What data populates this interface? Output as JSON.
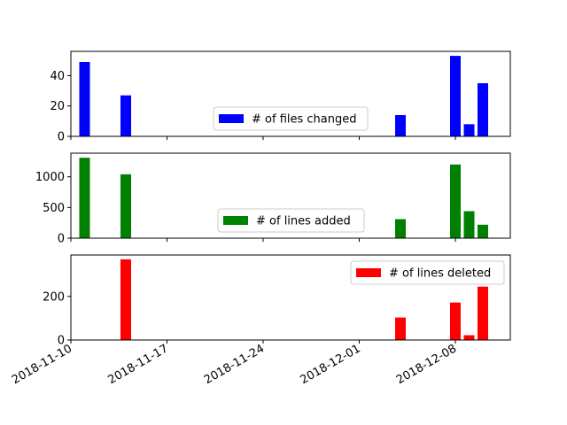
{
  "chart_data": [
    {
      "type": "bar",
      "x": [
        "2018-11-11",
        "2018-11-14",
        "2018-12-04",
        "2018-12-08",
        "2018-12-09",
        "2018-12-10"
      ],
      "values": [
        49,
        27,
        14,
        53,
        8,
        35
      ],
      "series": [
        {
          "name": "# of files changed",
          "color": "#0000ff"
        }
      ],
      "yticks": [
        0,
        20,
        40
      ],
      "ylim": [
        0,
        56
      ],
      "legend": "center"
    },
    {
      "type": "bar",
      "x": [
        "2018-11-11",
        "2018-11-14",
        "2018-12-04",
        "2018-12-08",
        "2018-12-09",
        "2018-12-10"
      ],
      "values": [
        1310,
        1040,
        310,
        1200,
        440,
        220
      ],
      "series": [
        {
          "name": "# of lines added",
          "color": "#008000"
        }
      ],
      "yticks": [
        0,
        500,
        1000
      ],
      "ylim": [
        0,
        1385
      ],
      "legend": "center"
    },
    {
      "type": "bar",
      "x": [
        "2018-11-14",
        "2018-12-04",
        "2018-12-08",
        "2018-12-09",
        "2018-12-10"
      ],
      "values": [
        370,
        103,
        172,
        22,
        245
      ],
      "series": [
        {
          "name": "# of lines deleted",
          "color": "#ff0000"
        }
      ],
      "yticks": [
        0,
        200
      ],
      "ylim": [
        0,
        390
      ],
      "legend": "upper right"
    }
  ],
  "shared_x": {
    "ticks": [
      "2018-11-10",
      "2018-11-17",
      "2018-11-24",
      "2018-12-01",
      "2018-12-08"
    ],
    "range": [
      "2018-11-10",
      "2018-12-12"
    ]
  }
}
